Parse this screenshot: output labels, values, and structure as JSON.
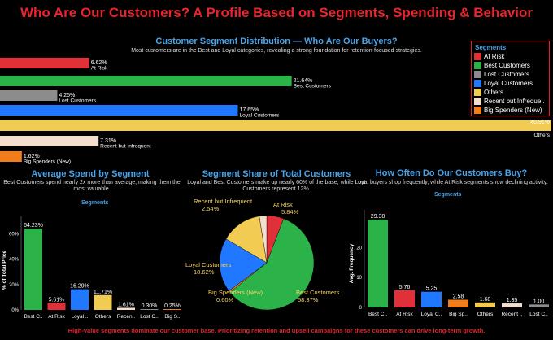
{
  "page": {
    "title": "Who Are Our Customers? A Profile Based on Segments, Spending & Behavior",
    "footer": "High-value segments dominate our customer base. Prioritizing retention and upsell campaigns for these customers can drive long-term growth."
  },
  "legend": {
    "title": "Segments",
    "items": [
      {
        "label": "At Risk",
        "color": "#e0303a"
      },
      {
        "label": "Best Customers",
        "color": "#2bb34a"
      },
      {
        "label": "Lost Customers",
        "color": "#8c8c8c"
      },
      {
        "label": "Loyal Customers",
        "color": "#1f78ff"
      },
      {
        "label": "Others",
        "color": "#f2cc52"
      },
      {
        "label": "Recent but Infreque..",
        "color": "#f3ddcc"
      },
      {
        "label": "Big Spenders (New)",
        "color": "#f07d1a"
      }
    ]
  },
  "chart_data": [
    {
      "type": "bar",
      "orientation": "horizontal",
      "title": "Customer Segment Distribution — Who Are Our Buyers?",
      "subtitle": "Most customers are in the Best and Loyal categories, revealing a strong foundation for retention-focused strategies.",
      "categories": [
        "At Risk",
        "Best Customers",
        "Lost Customers",
        "Loyal Customers",
        "Others",
        "Recent but Infrequent",
        "Big Spenders (New)"
      ],
      "values": [
        6.62,
        21.64,
        4.25,
        17.65,
        40.91,
        7.31,
        1.62
      ],
      "value_labels": [
        "6.62%",
        "21.64%",
        "4.25%",
        "17.65%",
        "40.91%",
        "7.31%",
        "1.62%"
      ],
      "colors": [
        "#e0303a",
        "#2bb34a",
        "#8c8c8c",
        "#1f78ff",
        "#f2cc52",
        "#f3ddcc",
        "#f07d1a"
      ],
      "xlim": [
        0,
        40.91
      ]
    },
    {
      "type": "bar",
      "title": "Average Spend by Segment",
      "subtitle": "Best Customers spend nearly 2x more than average, making them the most valuable.",
      "legend_title": "Segments",
      "ylabel": "% of Total Price",
      "categories": [
        "Best C..",
        "At Risk",
        "Loyal ..",
        "Others",
        "Recen..",
        "Lost C..",
        "Big S.."
      ],
      "values": [
        64.23,
        5.61,
        16.29,
        11.71,
        1.61,
        0.3,
        0.25
      ],
      "value_labels": [
        "64.23%",
        "5.61%",
        "16.29%",
        "11.71%",
        "1.61%",
        "0.30%",
        "0.25%"
      ],
      "colors": [
        "#2bb34a",
        "#e0303a",
        "#1f78ff",
        "#f2cc52",
        "#f3ddcc",
        "#8c8c8c",
        "#f07d1a"
      ],
      "yticks": [
        "0%",
        "20%",
        "40%",
        "60%"
      ],
      "ylim": [
        0,
        70
      ]
    },
    {
      "type": "pie",
      "title": "Segment Share of Total Customers",
      "subtitle": "Loyal and Best Customers make up nearly 60% of the base, while Lost Customers represent 12%.",
      "slices": [
        {
          "label": "At Risk",
          "value": 5.84,
          "value_label": "5.84%",
          "color": "#e0303a"
        },
        {
          "label": "Best Customers",
          "value": 58.37,
          "value_label": "58.37%",
          "color": "#2bb34a"
        },
        {
          "label": "Big Spenders (New)",
          "value": 0.6,
          "value_label": "0.60%",
          "color": "#f07d1a"
        },
        {
          "label": "Loyal Customers",
          "value": 18.62,
          "value_label": "18.62%",
          "color": "#1f78ff"
        },
        {
          "label": "",
          "value": 14.03,
          "value_label": "",
          "color": "#f2cc52"
        },
        {
          "label": "Recent but Infrequent",
          "value": 2.54,
          "value_label": "2.54%",
          "color": "#f3ddcc"
        }
      ]
    },
    {
      "type": "bar",
      "title": "How Often Do Our Customers Buy?",
      "subtitle": "Loyal buyers shop frequently, while At Risk segments show declining activity.",
      "legend_title": "Segments",
      "ylabel": "Avg. Frequency",
      "categories": [
        "Best C..",
        "At Risk",
        "Loyal C..",
        "Big Sp..",
        "Others",
        "Recent ..",
        "Lost C.."
      ],
      "values": [
        29.38,
        5.76,
        5.25,
        2.58,
        1.68,
        1.35,
        1.0
      ],
      "value_labels": [
        "29.38",
        "5.76",
        "5.25",
        "2.58",
        "1.68",
        "1.35",
        "1.00"
      ],
      "colors": [
        "#2bb34a",
        "#e0303a",
        "#1f78ff",
        "#f07d1a",
        "#f2cc52",
        "#f3ddcc",
        "#8c8c8c"
      ],
      "yticks": [
        "0",
        "10",
        "20"
      ],
      "ylim": [
        0,
        31
      ]
    }
  ]
}
